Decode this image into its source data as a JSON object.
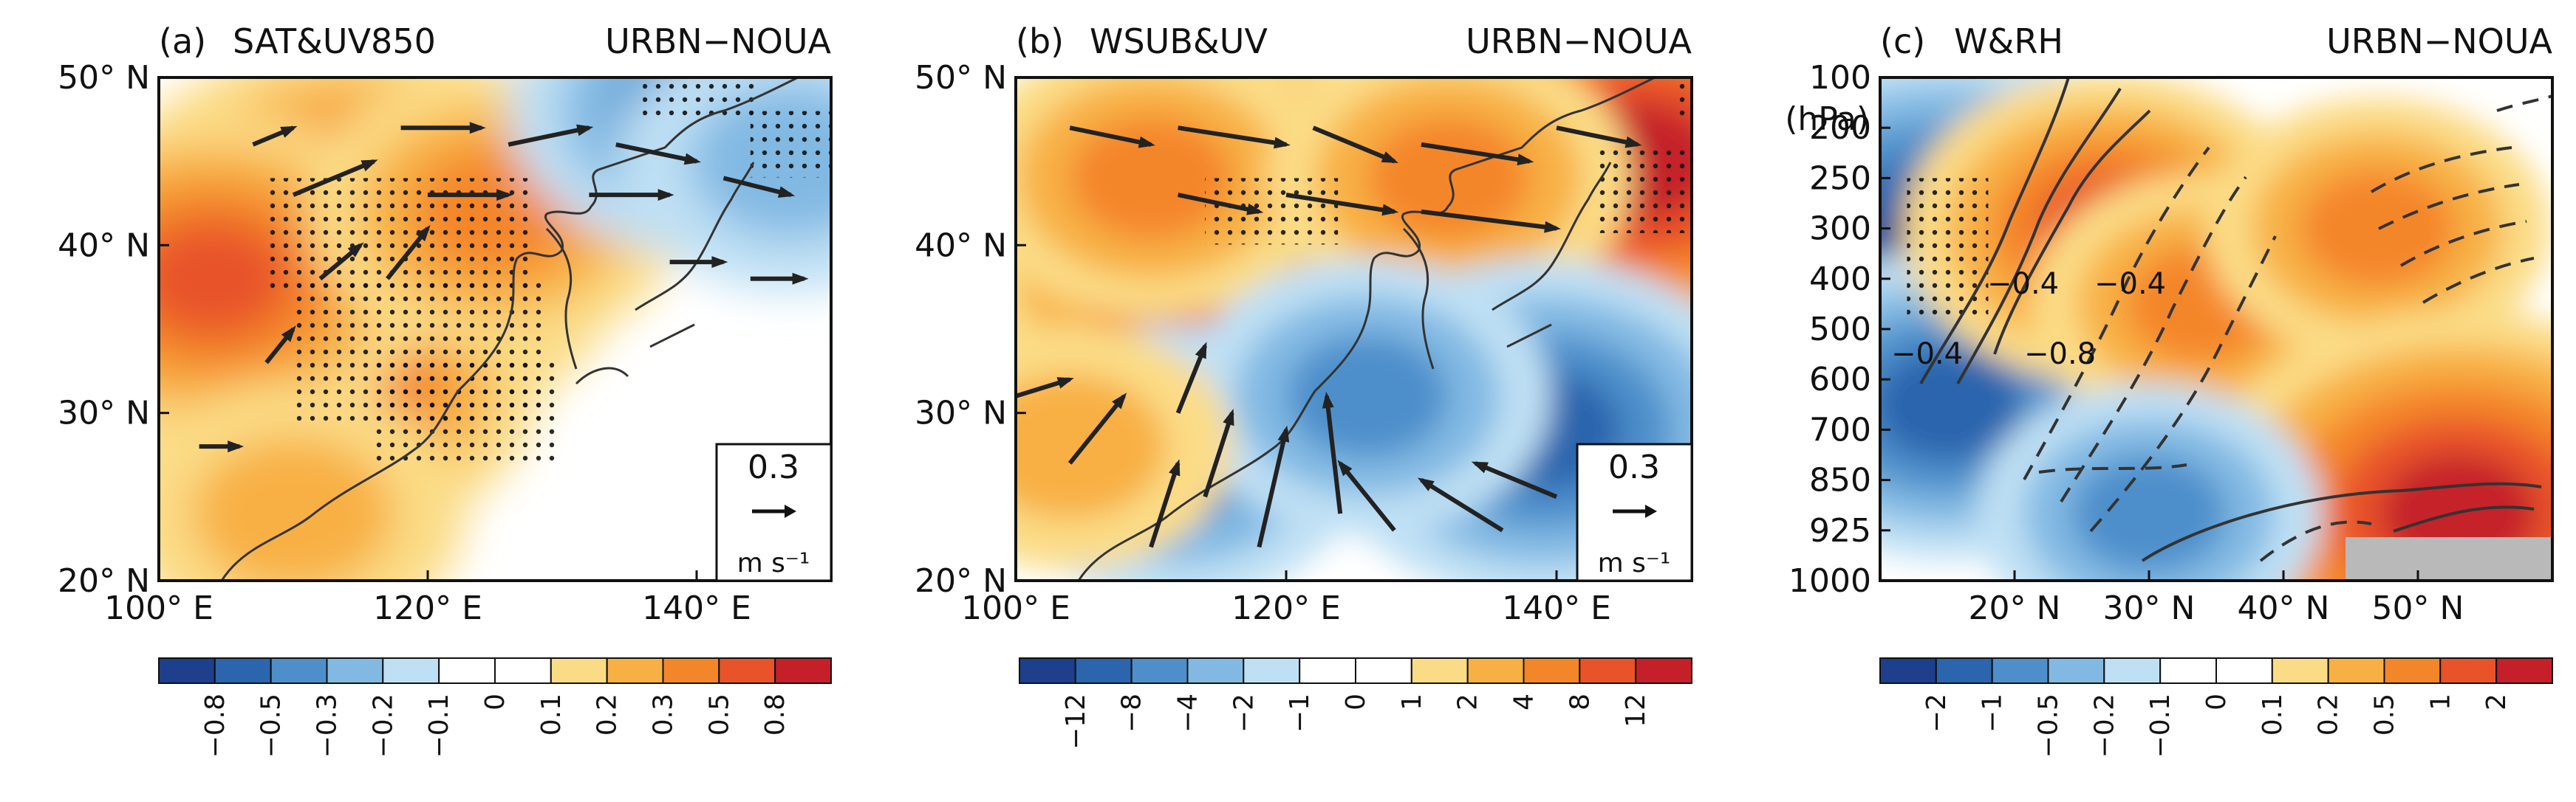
{
  "colors": {
    "levels": [
      "#1d3f8c",
      "#2b65ad",
      "#4e8fcb",
      "#82b9e3",
      "#bfe0f4",
      "#ffffff",
      "#ffffff",
      "#fbdc86",
      "#f8b044",
      "#f4862a",
      "#e8532a",
      "#c5202a"
    ]
  },
  "chart_data": [
    {
      "type": "heatmap",
      "panel": "(a)",
      "title": "SAT&UV850",
      "subtitle": "URBN−NOUA",
      "xlim": [
        100,
        150
      ],
      "ylim": [
        20,
        50
      ],
      "xticks": [
        "100° E",
        "120° E",
        "140° E"
      ],
      "yticks": [
        "50° N",
        "40° N",
        "30° N",
        "20° N"
      ],
      "colorbar_ticks": [
        "−0.8",
        "−0.5",
        "−0.3",
        "−0.2",
        "−0.1",
        "0",
        "0.1",
        "0.2",
        "0.3",
        "0.5",
        "0.8"
      ],
      "vector_reference": {
        "value": "0.3",
        "unit": "m s⁻¹"
      },
      "anomaly_centers": [
        {
          "lon": 115,
          "lat": 40,
          "value": 0.8
        },
        {
          "lon": 112,
          "lat": 32,
          "value": 0.5
        },
        {
          "lon": 104,
          "lat": 38,
          "value": 0.5
        },
        {
          "lon": 125,
          "lat": 42,
          "value": 0.3
        },
        {
          "lon": 140,
          "lat": 48,
          "value": -0.3
        },
        {
          "lon": 147,
          "lat": 45,
          "value": -0.2
        },
        {
          "lon": 110,
          "lat": 24,
          "value": 0.2
        }
      ],
      "stippling": "significant regions over eastern China and northern Japan"
    },
    {
      "type": "heatmap",
      "panel": "(b)",
      "title": "WSUB&UV",
      "subtitle": "URBN−NOUA",
      "xlim": [
        100,
        150
      ],
      "ylim": [
        20,
        50
      ],
      "xticks": [
        "100° E",
        "120° E",
        "140° E"
      ],
      "yticks": [
        "50° N",
        "40° N",
        "30° N",
        "20° N"
      ],
      "colorbar_ticks": [
        "−12",
        "−8",
        "−4",
        "−2",
        "−1",
        "0",
        "1",
        "2",
        "4",
        "8",
        "12"
      ],
      "vector_reference": {
        "value": "0.3",
        "unit": "m s⁻¹"
      },
      "anomaly_centers": [
        {
          "lon": 116,
          "lat": 40,
          "value": 12
        },
        {
          "lon": 110,
          "lat": 44,
          "value": 4
        },
        {
          "lon": 146,
          "lat": 45,
          "value": 12
        },
        {
          "lon": 132,
          "lat": 44,
          "value": 4
        },
        {
          "lon": 139,
          "lat": 29,
          "value": -8
        },
        {
          "lon": 112,
          "lat": 27,
          "value": -4
        },
        {
          "lon": 126,
          "lat": 31,
          "value": -4
        },
        {
          "lon": 104,
          "lat": 28,
          "value": 2
        }
      ]
    },
    {
      "type": "heatmap",
      "panel": "(c)",
      "title": "W&RH",
      "subtitle": "URBN−NOUA",
      "xlim": [
        10,
        60
      ],
      "ylim": [
        1000,
        100
      ],
      "yunit": "(hPa)",
      "xticks": [
        "20° N",
        "30° N",
        "40° N",
        "50° N"
      ],
      "yticks": [
        "100",
        "200",
        "250",
        "300",
        "400",
        "500",
        "600",
        "700",
        "850",
        "925",
        "1000"
      ],
      "colorbar_ticks": [
        "−2",
        "−1",
        "−0.5",
        "−0.2",
        "−0.1",
        "0",
        "0.1",
        "0.2",
        "0.5",
        "1",
        "2"
      ],
      "contour_labels": [
        "−0.4",
        "−0.4",
        "−0.8",
        "−0.4"
      ],
      "anomaly_centers": [
        {
          "lat": 15,
          "p": 350,
          "value": -2
        },
        {
          "lat": 15,
          "p": 650,
          "value": -1
        },
        {
          "lat": 27,
          "p": 300,
          "value": 1
        },
        {
          "lat": 34,
          "p": 450,
          "value": 0.5
        },
        {
          "lat": 47,
          "p": 300,
          "value": 0.5
        },
        {
          "lat": 53,
          "p": 900,
          "value": 2
        },
        {
          "lat": 30,
          "p": 900,
          "value": -0.5
        }
      ]
    }
  ]
}
